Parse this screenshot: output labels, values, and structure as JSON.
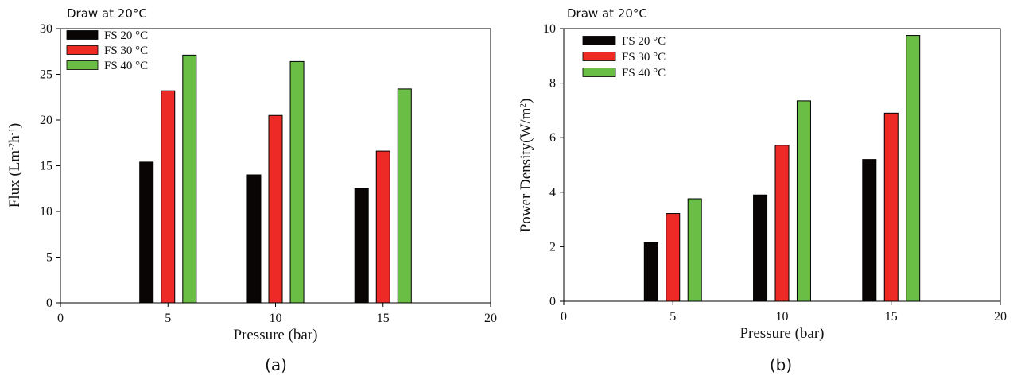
{
  "figure": {
    "panels": [
      "a",
      "b"
    ]
  },
  "chart_data": [
    {
      "type": "bar",
      "note": "Draw at 20°C",
      "subcaption": "(a)",
      "xlabel": "Pressure (bar)",
      "ylabel_main": "Flux  (Lm",
      "ylabel_sup1": "-2",
      "ylabel_mid": "h",
      "ylabel_sup2": "-1",
      "ylabel_end": ")",
      "xlim": [
        0,
        20
      ],
      "ylim": [
        0,
        30
      ],
      "xticks": [
        0,
        5,
        10,
        15,
        20
      ],
      "yticks": [
        0,
        5,
        10,
        15,
        20,
        25,
        30
      ],
      "legend_position": "top-left",
      "categories": [
        5,
        10,
        15
      ],
      "offsets": [
        -1,
        0,
        1
      ],
      "series": [
        {
          "name": "FS 20 °C",
          "color": "#0a0505",
          "values": [
            15.4,
            14.0,
            12.5
          ]
        },
        {
          "name": "FS 30 °C",
          "color": "#ee2a27",
          "values": [
            23.2,
            20.5,
            16.6
          ]
        },
        {
          "name": "FS 40 °C",
          "color": "#6abd45",
          "values": [
            27.1,
            26.4,
            23.4
          ]
        }
      ]
    },
    {
      "type": "bar",
      "note": "Draw at 20°C",
      "subcaption": "(b)",
      "xlabel": "Pressure (bar)",
      "ylabel_main": "Power Density(W/m",
      "ylabel_sup1": "2",
      "ylabel_mid": "",
      "ylabel_sup2": "",
      "ylabel_end": ")",
      "xlim": [
        0,
        20
      ],
      "ylim": [
        0,
        10
      ],
      "xticks": [
        0,
        5,
        10,
        15,
        20
      ],
      "yticks": [
        0,
        2,
        4,
        6,
        8,
        10
      ],
      "legend_position": "top-left",
      "categories": [
        5,
        10,
        15
      ],
      "offsets": [
        -1,
        0,
        1
      ],
      "series": [
        {
          "name": "FS 20 °C",
          "color": "#0a0505",
          "values": [
            2.15,
            3.9,
            5.2
          ]
        },
        {
          "name": "FS 30 °C",
          "color": "#ee2a27",
          "values": [
            3.22,
            5.72,
            6.9
          ]
        },
        {
          "name": "FS 40 °C",
          "color": "#6abd45",
          "values": [
            3.76,
            7.35,
            9.75
          ]
        }
      ]
    }
  ]
}
